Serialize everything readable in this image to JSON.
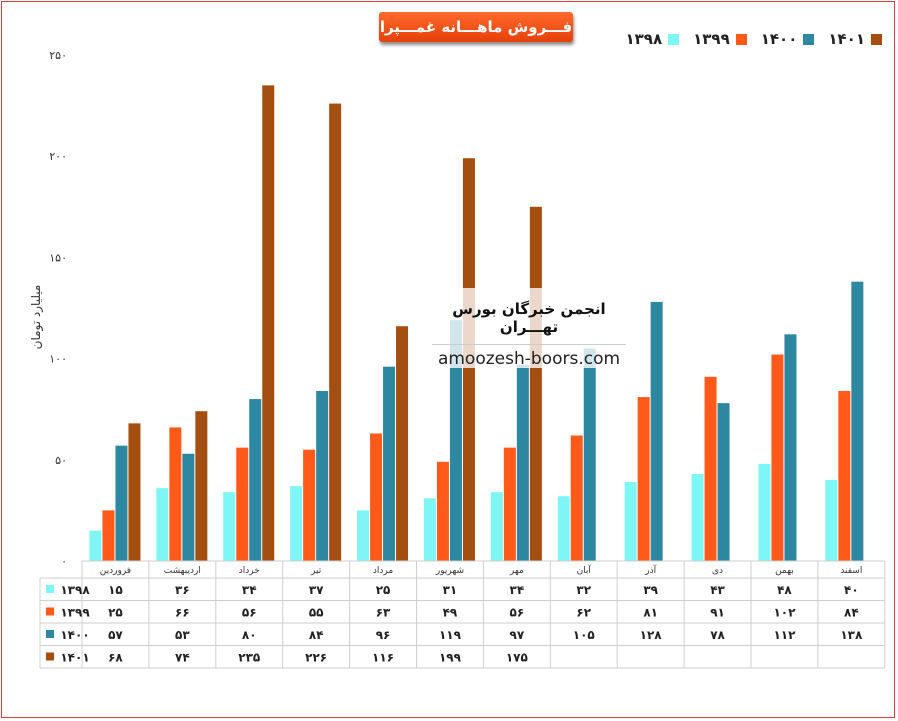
{
  "chart_data": {
    "type": "bar",
    "title": "فـــروش ماهـــانه غمـــپرا",
    "ylabel": "میلیارد تومان",
    "ylim": [
      0,
      250
    ],
    "yticks": [
      "۰",
      "۵۰",
      "۱۰۰",
      "۱۵۰",
      "۲۰۰",
      "۲۵۰"
    ],
    "ytick_values": [
      0,
      50,
      100,
      150,
      200,
      250
    ],
    "grid": false,
    "legend_position": "top-right",
    "categories": [
      "فروردین",
      "اردیبهشت",
      "خرداد",
      "تیر",
      "مرداد",
      "شهریور",
      "مهر",
      "آبان",
      "آذر",
      "دی",
      "بهمن",
      "اسفند"
    ],
    "series": [
      {
        "name": "۱۳۹۸",
        "color": "#7ff6f6",
        "values": [
          15,
          36,
          34,
          37,
          25,
          31,
          34,
          32,
          39,
          43,
          48,
          40
        ],
        "labels": [
          "۱۵",
          "۳۶",
          "۳۴",
          "۳۷",
          "۲۵",
          "۳۱",
          "۳۴",
          "۳۲",
          "۳۹",
          "۴۳",
          "۴۸",
          "۴۰"
        ]
      },
      {
        "name": "۱۳۹۹",
        "color": "#ff5a1a",
        "values": [
          25,
          66,
          56,
          55,
          63,
          49,
          56,
          62,
          81,
          91,
          102,
          84
        ],
        "labels": [
          "۲۵",
          "۶۶",
          "۵۶",
          "۵۵",
          "۶۳",
          "۴۹",
          "۵۶",
          "۶۲",
          "۸۱",
          "۹۱",
          "۱۰۲",
          "۸۴"
        ]
      },
      {
        "name": "۱۴۰۰",
        "color": "#2e87a0",
        "values": [
          57,
          53,
          80,
          84,
          96,
          119,
          97,
          105,
          128,
          78,
          112,
          138
        ],
        "labels": [
          "۵۷",
          "۵۳",
          "۸۰",
          "۸۴",
          "۹۶",
          "۱۱۹",
          "۹۷",
          "۱۰۵",
          "۱۲۸",
          "۷۸",
          "۱۱۲",
          "۱۳۸"
        ]
      },
      {
        "name": "۱۴۰۱",
        "color": "#a44e12",
        "values": [
          68,
          74,
          235,
          226,
          116,
          199,
          175,
          null,
          null,
          null,
          null,
          null
        ],
        "labels": [
          "۶۸",
          "۷۴",
          "۲۳۵",
          "۲۲۶",
          "۱۱۶",
          "۱۹۹",
          "۱۷۵",
          "",
          "",
          "",
          "",
          ""
        ]
      }
    ]
  },
  "watermark": {
    "line1": "انجمن خبرگان بورس تهـــران",
    "line2": "amoozesh-boors.com"
  }
}
